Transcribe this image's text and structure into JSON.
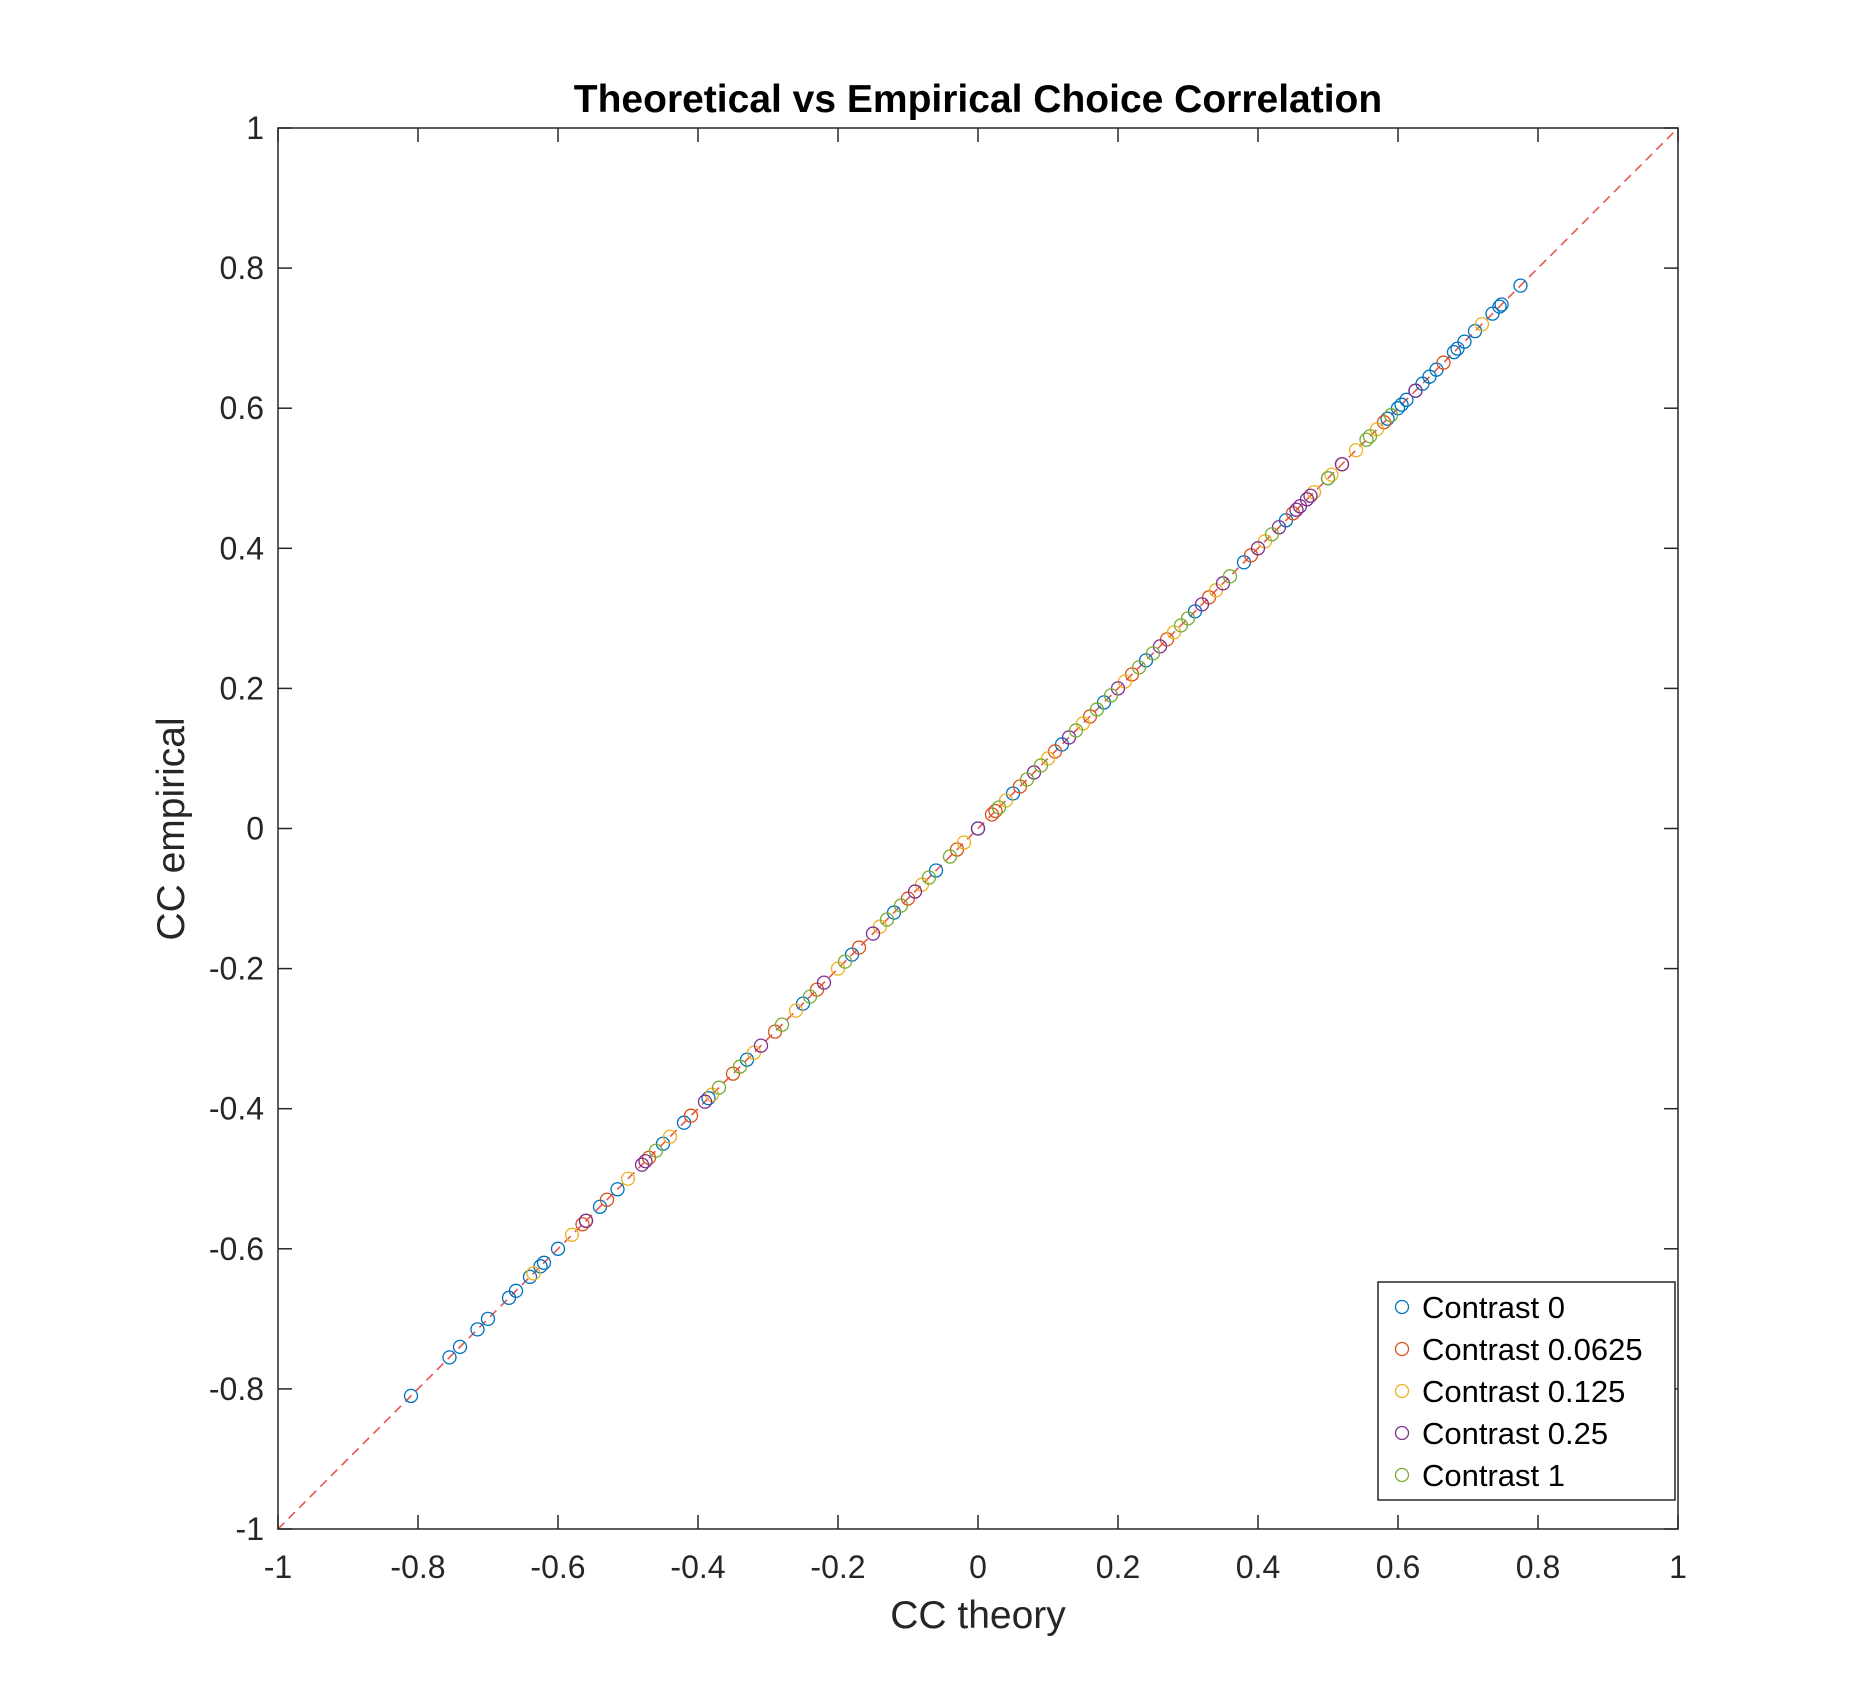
{
  "chart_data": {
    "type": "scatter",
    "title": "Theoretical vs Empirical Choice Correlation",
    "xlabel": "CC theory",
    "ylabel": "CC empirical",
    "xlim": [
      -1,
      1
    ],
    "ylim": [
      -1,
      1
    ],
    "xticks": [
      "-1",
      "-0.8",
      "-0.6",
      "-0.4",
      "-0.2",
      "0",
      "0.2",
      "0.4",
      "0.6",
      "0.8",
      "1"
    ],
    "yticks": [
      "-1",
      "-0.8",
      "-0.6",
      "-0.4",
      "-0.2",
      "0",
      "0.2",
      "0.4",
      "0.6",
      "0.8",
      "1"
    ],
    "grid": false,
    "legend_position": "bottom-right",
    "reference_line": {
      "x": [
        -1,
        1
      ],
      "y": [
        -1,
        1
      ],
      "color": "#e8574f",
      "style": "dashed"
    },
    "series": [
      {
        "name": "Contrast 0",
        "color": "#0072BD",
        "values": [
          -0.81,
          -0.755,
          -0.74,
          -0.715,
          -0.7,
          -0.67,
          -0.66,
          -0.64,
          -0.625,
          -0.62,
          -0.6,
          -0.54,
          -0.515,
          -0.45,
          -0.42,
          -0.385,
          -0.33,
          -0.25,
          -0.18,
          -0.12,
          -0.06,
          0.0,
          0.05,
          0.12,
          0.18,
          0.24,
          0.31,
          0.38,
          0.44,
          0.5,
          0.585,
          0.6,
          0.605,
          0.612,
          0.625,
          0.635,
          0.645,
          0.655,
          0.68,
          0.685,
          0.695,
          0.71,
          0.735,
          0.745,
          0.748,
          0.775
        ]
      },
      {
        "name": "Contrast 0.0625",
        "color": "#D95319",
        "values": [
          -0.565,
          -0.56,
          -0.53,
          -0.47,
          -0.41,
          -0.35,
          -0.29,
          -0.23,
          -0.17,
          -0.1,
          -0.03,
          0.02,
          0.025,
          0.06,
          0.11,
          0.16,
          0.22,
          0.27,
          0.33,
          0.39,
          0.45,
          0.52,
          0.58,
          0.665
        ]
      },
      {
        "name": "Contrast 0.125",
        "color": "#EDB120",
        "values": [
          -0.635,
          -0.58,
          -0.5,
          -0.44,
          -0.38,
          -0.32,
          -0.26,
          -0.2,
          -0.14,
          -0.08,
          -0.02,
          0.04,
          0.1,
          0.15,
          0.21,
          0.28,
          0.34,
          0.41,
          0.48,
          0.505,
          0.54,
          0.57,
          0.72
        ]
      },
      {
        "name": "Contrast 0.25",
        "color": "#7E2F8E",
        "values": [
          -0.56,
          -0.48,
          -0.475,
          -0.39,
          -0.31,
          -0.22,
          -0.15,
          -0.09,
          0.0,
          0.08,
          0.13,
          0.2,
          0.26,
          0.32,
          0.35,
          0.4,
          0.43,
          0.455,
          0.46,
          0.47,
          0.475,
          0.52,
          0.625
        ]
      },
      {
        "name": "Contrast 1",
        "color": "#77AC30",
        "values": [
          -0.46,
          -0.37,
          -0.34,
          -0.28,
          -0.24,
          -0.19,
          -0.13,
          -0.11,
          -0.07,
          -0.04,
          0.03,
          0.07,
          0.09,
          0.14,
          0.17,
          0.19,
          0.23,
          0.25,
          0.29,
          0.3,
          0.36,
          0.42,
          0.5,
          0.555,
          0.56,
          0.59
        ]
      }
    ]
  }
}
